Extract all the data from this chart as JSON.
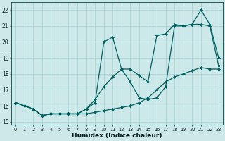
{
  "xlabel": "Humidex (Indice chaleur)",
  "bg_color": "#cce8e8",
  "grid_color": "#b0d8d8",
  "line_color": "#006060",
  "xlim": [
    -0.5,
    23.5
  ],
  "ylim": [
    14.8,
    22.5
  ],
  "xticks": [
    0,
    1,
    2,
    3,
    4,
    5,
    6,
    7,
    8,
    9,
    10,
    11,
    12,
    13,
    14,
    15,
    16,
    17,
    18,
    19,
    20,
    21,
    22,
    23
  ],
  "yticks": [
    15,
    16,
    17,
    18,
    19,
    20,
    21,
    22
  ],
  "series1_x": [
    0,
    1,
    2,
    3,
    4,
    5,
    6,
    7,
    8,
    9,
    10,
    11,
    12,
    13,
    14,
    15,
    16,
    17,
    18,
    19,
    20,
    21,
    22,
    23
  ],
  "series1_y": [
    16.2,
    16.0,
    15.8,
    15.4,
    15.5,
    15.5,
    15.5,
    15.5,
    15.5,
    15.6,
    15.7,
    15.8,
    15.9,
    16.0,
    16.2,
    16.5,
    17.0,
    17.5,
    17.8,
    18.0,
    18.2,
    18.4,
    18.3,
    18.3
  ],
  "series2_x": [
    0,
    1,
    2,
    3,
    4,
    5,
    6,
    7,
    8,
    9,
    10,
    11,
    12,
    13,
    14,
    15,
    16,
    17,
    18,
    19,
    20,
    21,
    22,
    23
  ],
  "series2_y": [
    16.2,
    16.0,
    15.8,
    15.4,
    15.5,
    15.5,
    15.5,
    15.5,
    15.8,
    16.2,
    20.0,
    20.3,
    18.3,
    18.3,
    17.9,
    17.5,
    20.4,
    20.5,
    21.1,
    21.0,
    21.1,
    22.0,
    21.1,
    19.0
  ],
  "series3_x": [
    0,
    1,
    2,
    3,
    4,
    5,
    6,
    7,
    8,
    9,
    10,
    11,
    12,
    13,
    14,
    15,
    16,
    17,
    18,
    19,
    20,
    21,
    22,
    23
  ],
  "series3_y": [
    16.2,
    16.0,
    15.8,
    15.4,
    15.5,
    15.5,
    15.5,
    15.5,
    15.8,
    16.4,
    17.2,
    17.8,
    18.3,
    17.5,
    16.5,
    16.4,
    16.5,
    17.2,
    21.0,
    21.0,
    21.1,
    21.1,
    21.0,
    18.5
  ]
}
